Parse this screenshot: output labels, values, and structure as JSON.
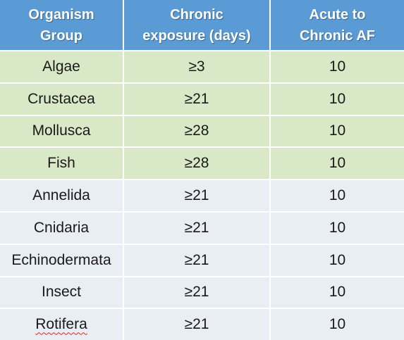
{
  "header": {
    "col1": [
      "Organism",
      "Group"
    ],
    "col2": [
      "Chronic",
      "exposure (days)"
    ],
    "col3": [
      "Acute to",
      "Chronic AF"
    ]
  },
  "rows": [
    {
      "group": "Algae",
      "exposure": "≥3",
      "af": "10",
      "shade": "green"
    },
    {
      "group": "Crustacea",
      "exposure": "≥21",
      "af": "10",
      "shade": "green"
    },
    {
      "group": "Mollusca",
      "exposure": "≥28",
      "af": "10",
      "shade": "green"
    },
    {
      "group": "Fish",
      "exposure": "≥28",
      "af": "10",
      "shade": "green"
    },
    {
      "group": "Annelida",
      "exposure": "≥21",
      "af": "10",
      "shade": "grey"
    },
    {
      "group": "Cnidaria",
      "exposure": "≥21",
      "af": "10",
      "shade": "grey"
    },
    {
      "group": "Echinodermata",
      "exposure": "≥21",
      "af": "10",
      "shade": "grey"
    },
    {
      "group": "Insect",
      "exposure": "≥21",
      "af": "10",
      "shade": "grey"
    },
    {
      "group": "Rotifera",
      "exposure": "≥21",
      "af": "10",
      "shade": "grey"
    }
  ],
  "colors": {
    "header_bg": "#5b9bd5",
    "green_row_bg": "#d9e8c6",
    "grey_row_bg": "#e9edf4"
  }
}
